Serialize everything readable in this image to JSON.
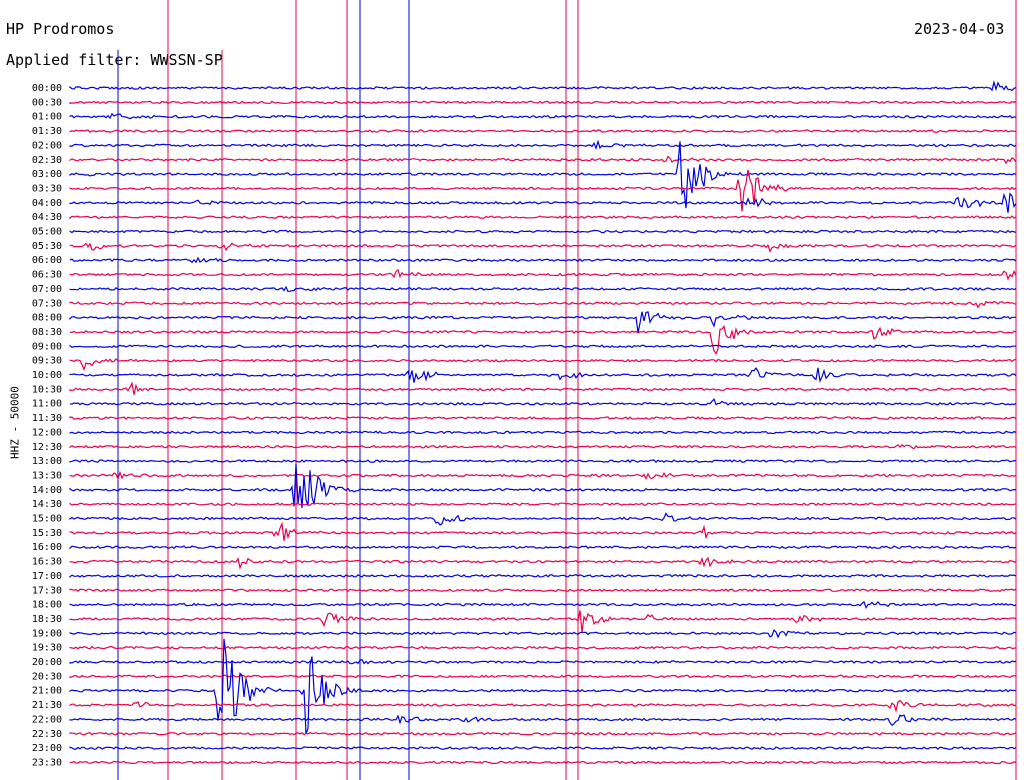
{
  "header": {
    "station": "HP Prodromos",
    "filter": "Applied filter: WWSSN-SP",
    "date": "2023-04-03",
    "channel_label": "HHZ - 50000"
  },
  "chart_data": {
    "type": "line",
    "title": "HP Prodromos",
    "subtitle": "Applied filter: WWSSN-SP",
    "ylabel": "HHZ - 50000",
    "ylabels": [
      "00:00",
      "00:30",
      "01:00",
      "01:30",
      "02:00",
      "02:30",
      "03:00",
      "03:30",
      "04:00",
      "04:30",
      "05:00",
      "05:30",
      "06:00",
      "06:30",
      "07:00",
      "07:30",
      "08:00",
      "08:30",
      "09:00",
      "09:30",
      "10:00",
      "10:30",
      "11:00",
      "11:30",
      "12:00",
      "12:30",
      "13:00",
      "13:30",
      "14:00",
      "14:30",
      "15:00",
      "15:30",
      "16:00",
      "16:30",
      "17:00",
      "17:30",
      "18:00",
      "18:30",
      "19:00",
      "19:30",
      "20:00",
      "20:30",
      "21:00",
      "21:30",
      "22:00",
      "22:30",
      "23:00",
      "23:30"
    ],
    "trace_colors": [
      "#0000e0",
      "#e8004a"
    ],
    "events": [
      {
        "row": 0,
        "pos": 0.977,
        "amp": 6
      },
      {
        "row": 2,
        "pos": 0.047,
        "amp": 4
      },
      {
        "row": 4,
        "pos": 0.556,
        "amp": 5
      },
      {
        "row": 5,
        "pos": 0.63,
        "amp": 5
      },
      {
        "row": 5,
        "pos": 0.99,
        "amp": 5
      },
      {
        "row": 6,
        "pos": 0.647,
        "amp": 55
      },
      {
        "row": 6,
        "pos": 0.02,
        "amp": 3
      },
      {
        "row": 7,
        "pos": 0.71,
        "amp": 40
      },
      {
        "row": 8,
        "pos": 0.13,
        "amp": 4
      },
      {
        "row": 8,
        "pos": 0.94,
        "amp": 10
      },
      {
        "row": 8,
        "pos": 0.99,
        "amp": 14
      },
      {
        "row": 8,
        "pos": 0.72,
        "amp": 8
      },
      {
        "row": 11,
        "pos": 0.02,
        "amp": 5
      },
      {
        "row": 11,
        "pos": 0.16,
        "amp": 5
      },
      {
        "row": 11,
        "pos": 0.74,
        "amp": 6
      },
      {
        "row": 12,
        "pos": 0.13,
        "amp": 4
      },
      {
        "row": 13,
        "pos": 0.34,
        "amp": 6
      },
      {
        "row": 13,
        "pos": 0.99,
        "amp": 5
      },
      {
        "row": 14,
        "pos": 0.23,
        "amp": 4
      },
      {
        "row": 15,
        "pos": 0.96,
        "amp": 4
      },
      {
        "row": 16,
        "pos": 0.6,
        "amp": 20
      },
      {
        "row": 16,
        "pos": 0.68,
        "amp": 10
      },
      {
        "row": 17,
        "pos": 0.682,
        "amp": 30
      },
      {
        "row": 17,
        "pos": 0.85,
        "amp": 7
      },
      {
        "row": 19,
        "pos": 0.015,
        "amp": 10
      },
      {
        "row": 20,
        "pos": 0.36,
        "amp": 12
      },
      {
        "row": 20,
        "pos": 0.52,
        "amp": 7
      },
      {
        "row": 20,
        "pos": 0.72,
        "amp": 10
      },
      {
        "row": 20,
        "pos": 0.79,
        "amp": 9
      },
      {
        "row": 21,
        "pos": 0.065,
        "amp": 6
      },
      {
        "row": 22,
        "pos": 0.68,
        "amp": 6
      },
      {
        "row": 25,
        "pos": 0.88,
        "amp": 4
      },
      {
        "row": 27,
        "pos": 0.05,
        "amp": 4
      },
      {
        "row": 27,
        "pos": 0.61,
        "amp": 5
      },
      {
        "row": 28,
        "pos": 0.24,
        "amp": 70
      },
      {
        "row": 30,
        "pos": 0.39,
        "amp": 10
      },
      {
        "row": 30,
        "pos": 0.63,
        "amp": 6
      },
      {
        "row": 31,
        "pos": 0.22,
        "amp": 12
      },
      {
        "row": 31,
        "pos": 0.67,
        "amp": 5
      },
      {
        "row": 33,
        "pos": 0.18,
        "amp": 6
      },
      {
        "row": 33,
        "pos": 0.67,
        "amp": 6
      },
      {
        "row": 36,
        "pos": 0.84,
        "amp": 6
      },
      {
        "row": 37,
        "pos": 0.27,
        "amp": 10
      },
      {
        "row": 37,
        "pos": 0.54,
        "amp": 16
      },
      {
        "row": 37,
        "pos": 0.61,
        "amp": 5
      },
      {
        "row": 37,
        "pos": 0.77,
        "amp": 5
      },
      {
        "row": 38,
        "pos": 0.74,
        "amp": 8
      },
      {
        "row": 40,
        "pos": 0.3,
        "amp": 5
      },
      {
        "row": 42,
        "pos": 0.16,
        "amp": 80
      },
      {
        "row": 42,
        "pos": 0.25,
        "amp": 50
      },
      {
        "row": 43,
        "pos": 0.07,
        "amp": 4
      },
      {
        "row": 43,
        "pos": 0.87,
        "amp": 8
      },
      {
        "row": 44,
        "pos": 0.35,
        "amp": 10
      },
      {
        "row": 44,
        "pos": 0.42,
        "amp": 6
      },
      {
        "row": 44,
        "pos": 0.87,
        "amp": 9
      }
    ]
  }
}
